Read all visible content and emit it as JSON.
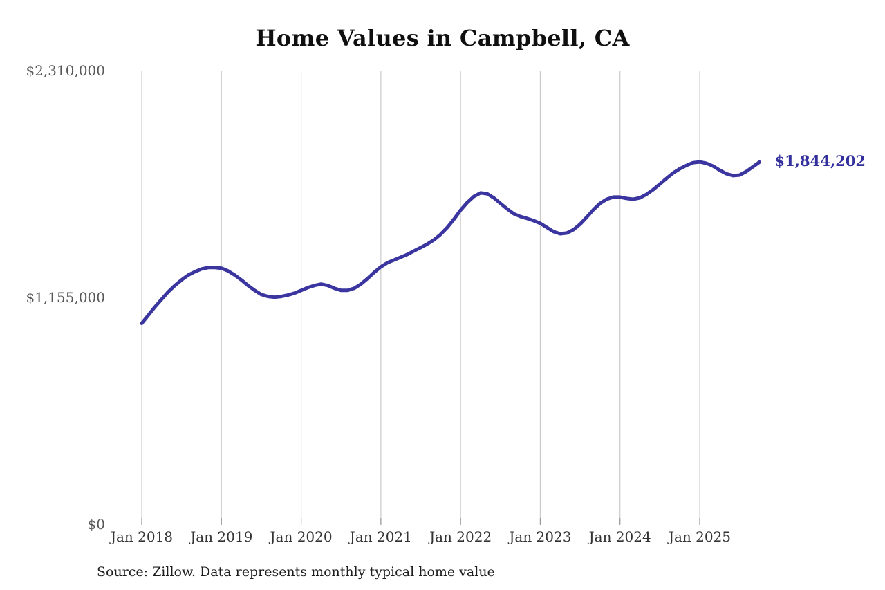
{
  "title": "Home Values in Campbell, CA",
  "source_note": "Source: Zillow. Data represents monthly typical home value",
  "colors": {
    "line": "#3b35a0",
    "last_value_label": "#33309e",
    "gridline": "#cbcbcb",
    "gridline_tick": "#9a9a9a",
    "y_tick_text": "#575757",
    "x_tick_text": "#333333",
    "title_text": "#0f0f0f",
    "source_text": "#1d1d1d",
    "background": "#ffffff"
  },
  "chart_data": {
    "type": "line",
    "title": "Home Values in Campbell, CA",
    "xlabel": "",
    "ylabel": "",
    "legend": "none",
    "grid": "vertical-only",
    "ylim": [
      0,
      2310000
    ],
    "y_ticks": [
      0,
      1155000,
      2310000
    ],
    "y_tick_labels": [
      "$0",
      "$1,155,000",
      "$2,310,000"
    ],
    "x_tick_labels": [
      "Jan 2018",
      "Jan 2019",
      "Jan 2020",
      "Jan 2021",
      "Jan 2022",
      "Jan 2023",
      "Jan 2024",
      "Jan 2025"
    ],
    "x_start": "Jan 2018",
    "frequency": "monthly",
    "last_value": 1844202,
    "last_value_label": "$1,844,202",
    "series": [
      {
        "name": "Typical home value",
        "values": [
          1023000,
          1065000,
          1107000,
          1146000,
          1184000,
          1216000,
          1244000,
          1269000,
          1286000,
          1300000,
          1307000,
          1307000,
          1304000,
          1290000,
          1269000,
          1244000,
          1216000,
          1191000,
          1170000,
          1160000,
          1156000,
          1160000,
          1167000,
          1177000,
          1191000,
          1205000,
          1216000,
          1223000,
          1216000,
          1202000,
          1191000,
          1191000,
          1202000,
          1223000,
          1251000,
          1283000,
          1311000,
          1332000,
          1346000,
          1360000,
          1374000,
          1392000,
          1409000,
          1427000,
          1448000,
          1476000,
          1511000,
          1553000,
          1599000,
          1638000,
          1669000,
          1687000,
          1683000,
          1662000,
          1634000,
          1606000,
          1581000,
          1567000,
          1557000,
          1546000,
          1532000,
          1511000,
          1490000,
          1479000,
          1483000,
          1500000,
          1528000,
          1564000,
          1602000,
          1634000,
          1655000,
          1666000,
          1666000,
          1659000,
          1655000,
          1662000,
          1680000,
          1704000,
          1732000,
          1761000,
          1789000,
          1810000,
          1827000,
          1841000,
          1845000,
          1838000,
          1824000,
          1803000,
          1785000,
          1775000,
          1778000,
          1796000,
          1820000,
          1844202
        ]
      }
    ]
  }
}
